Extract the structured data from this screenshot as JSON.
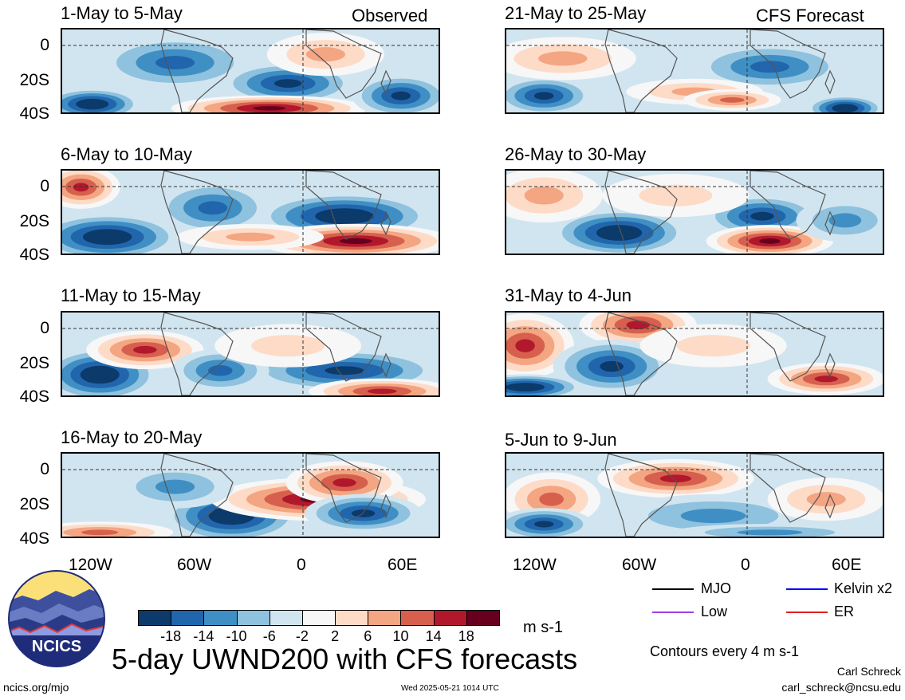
{
  "chart_data": {
    "type": "heatmap",
    "title": "5-day UWND200 with CFS forecasts",
    "units": "m s-1",
    "contour_note": "Contours every 4 m s-1",
    "x_ticks": [
      "120W",
      "60W",
      "0",
      "60E"
    ],
    "y_ticks": [
      "0",
      "20S",
      "40S"
    ],
    "left_column_label": "Observed",
    "right_column_label": "CFS Forecast",
    "colorbar": {
      "labels": [
        "-18",
        "-14",
        "-10",
        "-6",
        "-2",
        "2",
        "6",
        "10",
        "14",
        "18"
      ],
      "colors": [
        "#0b3a6b",
        "#2166ac",
        "#3f8fc5",
        "#8fc2de",
        "#d1e5f0",
        "#f7f7f7",
        "#fddbc7",
        "#f4a582",
        "#d6604d",
        "#b2182b",
        "#67001f"
      ]
    },
    "panels_observed": [
      {
        "label": "1-May to 5-May"
      },
      {
        "label": "6-May to 10-May"
      },
      {
        "label": "11-May to 15-May"
      },
      {
        "label": "16-May to 20-May"
      }
    ],
    "panels_forecast": [
      {
        "label": "21-May to 25-May"
      },
      {
        "label": "26-May to 30-May"
      },
      {
        "label": "31-May to 4-Jun"
      },
      {
        "label": "5-Jun to 9-Jun"
      }
    ],
    "legend": [
      {
        "label": "MJO",
        "color": "#000000"
      },
      {
        "label": "Kelvin x2",
        "color": "#0000ff"
      },
      {
        "label": "Low",
        "color": "#a040e0"
      },
      {
        "label": "ER",
        "color": "#e02020"
      }
    ]
  },
  "logo": {
    "text": "NCICS"
  },
  "footer": {
    "site": "ncics.org/mjo",
    "timestamp": "Wed 2025-05-21 1014 UTC",
    "author": "Carl Schreck",
    "email": "carl_schreck@ncsu.edu"
  }
}
